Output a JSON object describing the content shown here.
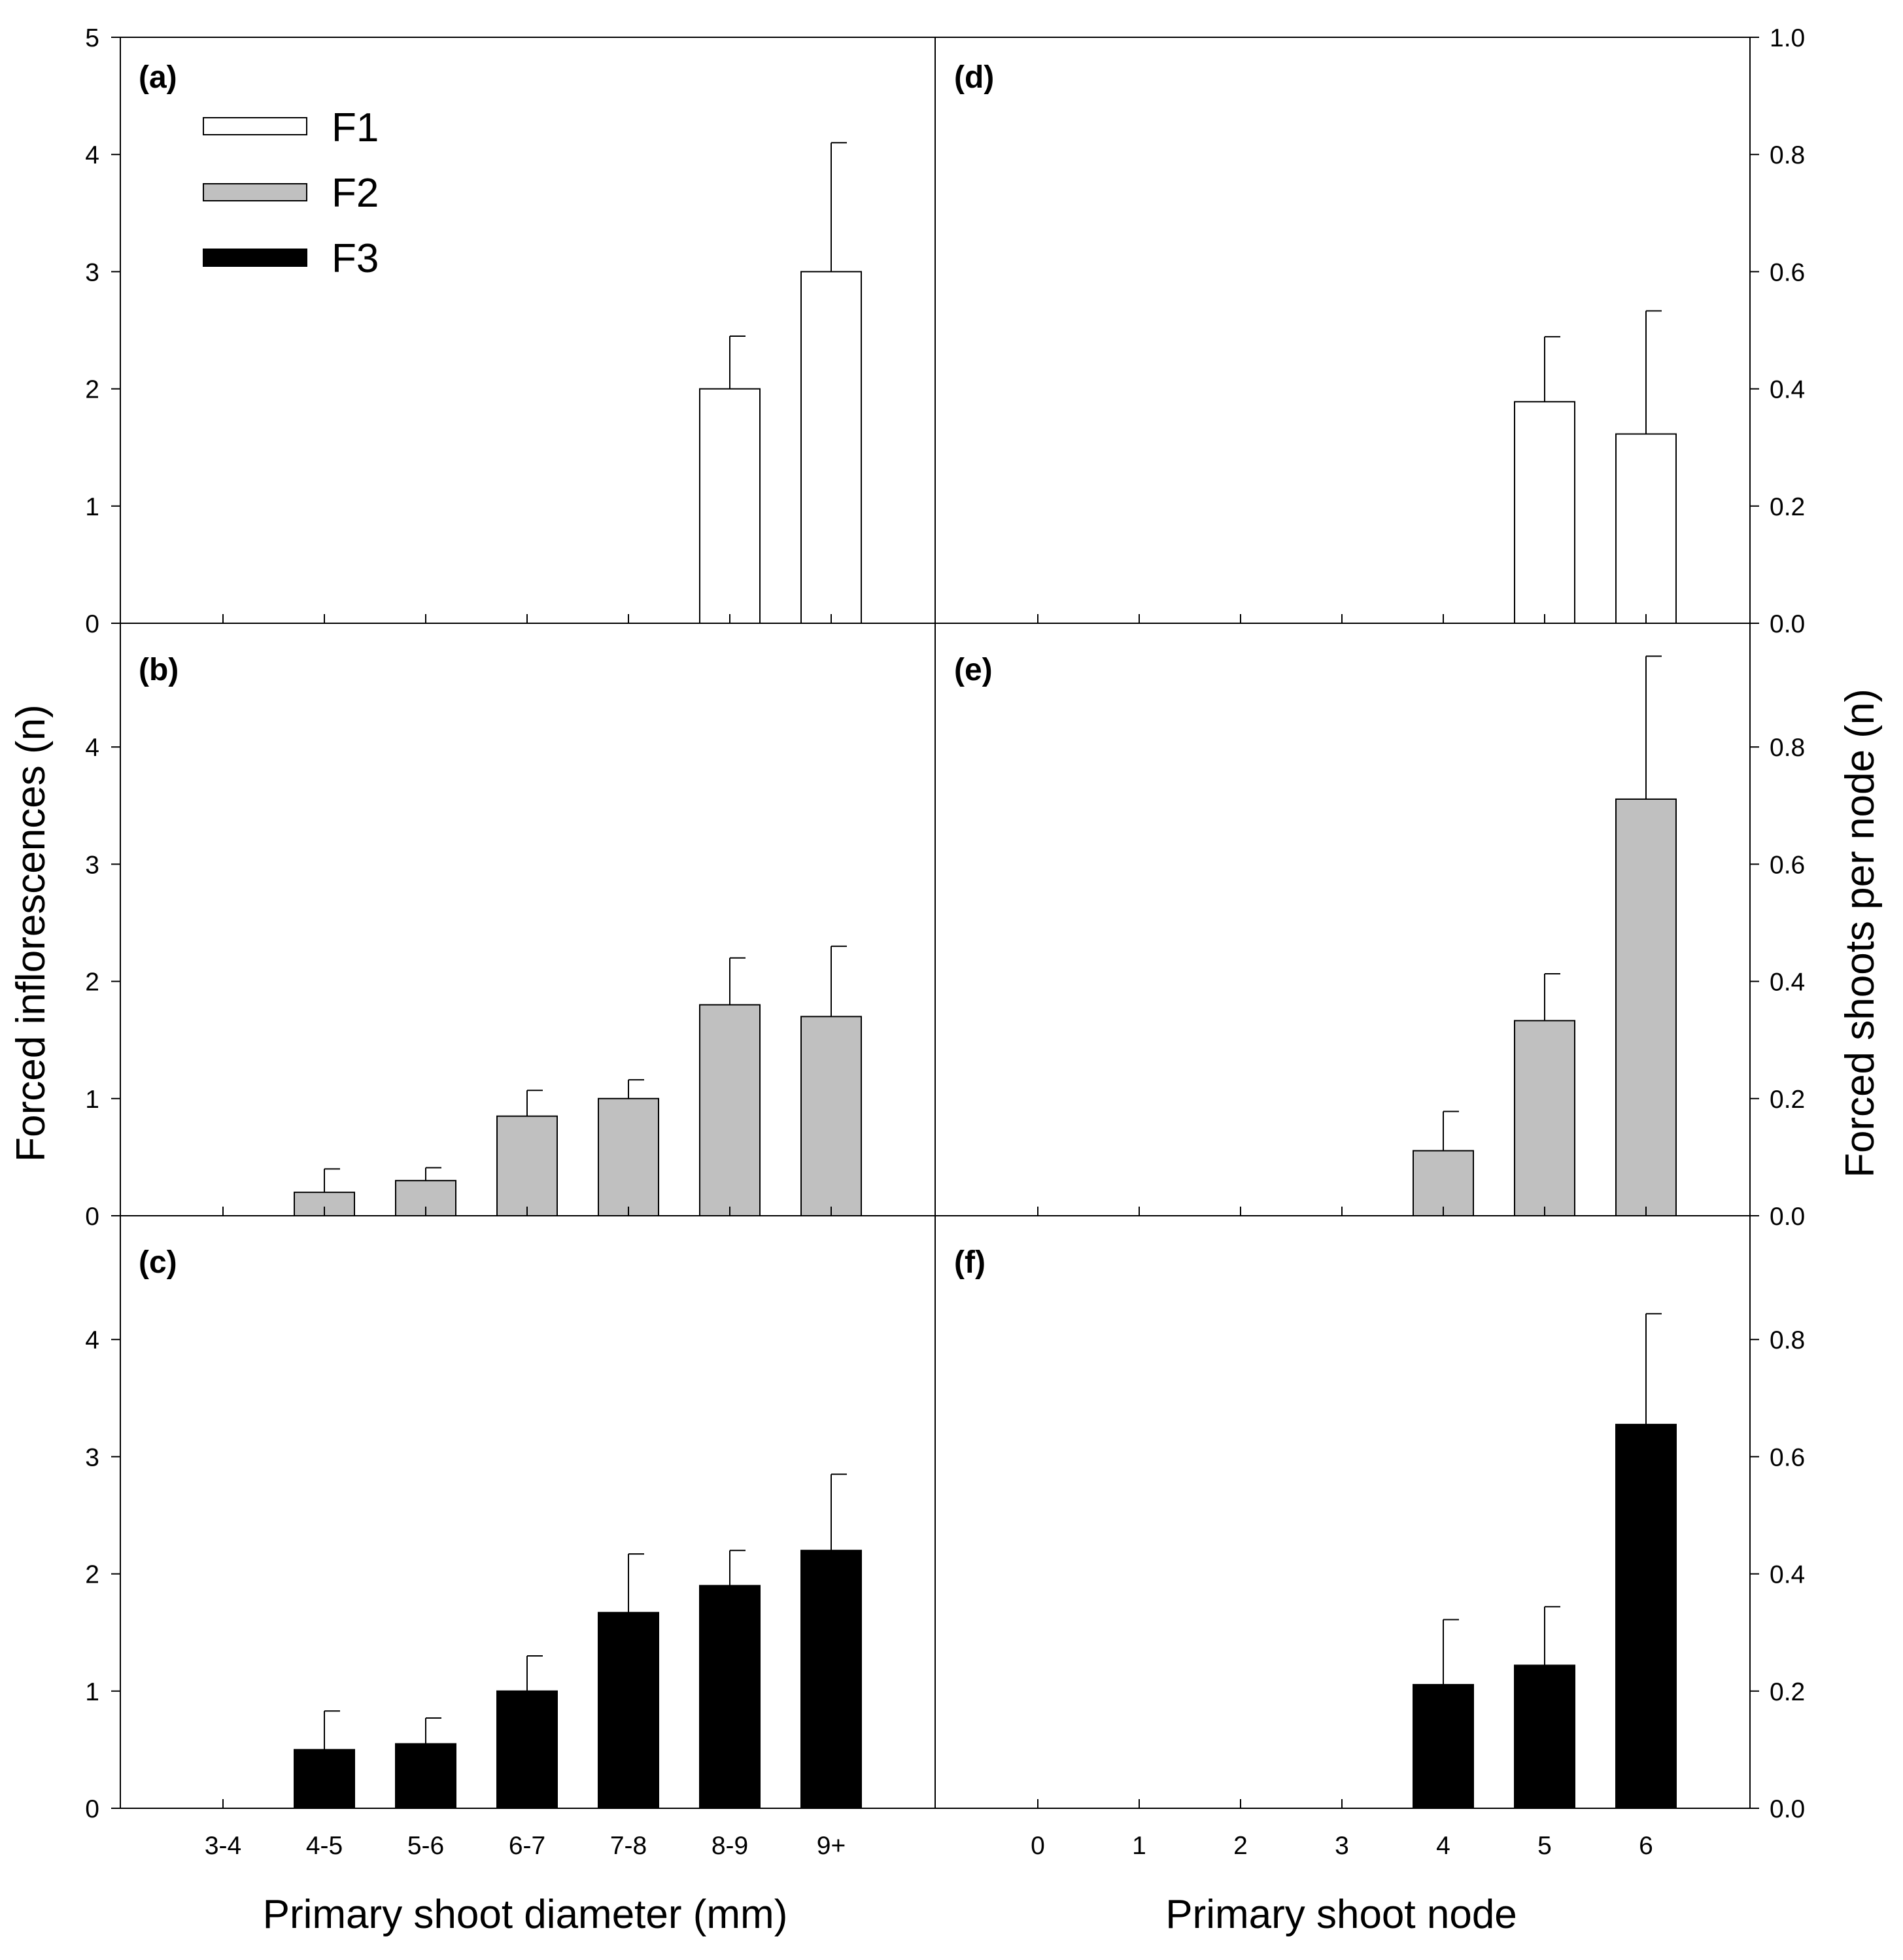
{
  "colors": {
    "F1": "#ffffff",
    "F2": "#c0c0c0",
    "F3": "#000000",
    "stroke": "#000000"
  },
  "legend": [
    {
      "label": "F1",
      "series": "F1"
    },
    {
      "label": "F2",
      "series": "F2"
    },
    {
      "label": "F3",
      "series": "F3"
    }
  ],
  "left_axis_title": "Forced inflorescences (n)",
  "right_axis_title": "Forced shoots per node (n)",
  "left_xlabel": "Primary shoot diameter (mm)",
  "right_xlabel": "Primary shoot node",
  "left_yticks_top": [
    "0",
    "1",
    "2",
    "3",
    "4",
    "5"
  ],
  "left_yticks": [
    "0",
    "1",
    "2",
    "3",
    "4"
  ],
  "right_yticks_top": [
    "0.0",
    "0.2",
    "0.4",
    "0.6",
    "0.8",
    "1.0"
  ],
  "right_yticks": [
    "0.0",
    "0.2",
    "0.4",
    "0.6",
    "0.8"
  ],
  "chart_data": [
    {
      "type": "bar",
      "panel": "(a)",
      "series": "F1",
      "categories": [
        "3-4",
        "4-5",
        "5-6",
        "6-7",
        "7-8",
        "8-9",
        "9+"
      ],
      "values": [
        0,
        0,
        0,
        0,
        0,
        2.0,
        3.0
      ],
      "errors": [
        0,
        0,
        0,
        0,
        0,
        0.45,
        1.1
      ],
      "ylabel": "Forced inflorescences (n)",
      "ylim": [
        0,
        5
      ]
    },
    {
      "type": "bar",
      "panel": "(b)",
      "series": "F2",
      "categories": [
        "3-4",
        "4-5",
        "5-6",
        "6-7",
        "7-8",
        "8-9",
        "9+"
      ],
      "values": [
        0,
        0.2,
        0.3,
        0.85,
        1.0,
        1.8,
        1.7
      ],
      "errors": [
        0,
        0.2,
        0.11,
        0.22,
        0.16,
        0.4,
        0.6
      ],
      "ylabel": "Forced inflorescences (n)",
      "ylim": [
        0,
        5
      ]
    },
    {
      "type": "bar",
      "panel": "(c)",
      "series": "F3",
      "categories": [
        "3-4",
        "4-5",
        "5-6",
        "6-7",
        "7-8",
        "8-9",
        "9+"
      ],
      "values": [
        0,
        0.5,
        0.55,
        1.0,
        1.67,
        1.9,
        2.2
      ],
      "errors": [
        0,
        0.33,
        0.22,
        0.3,
        0.5,
        0.3,
        0.65
      ],
      "xlabel": "Primary shoot diameter (mm)",
      "ylabel": "Forced inflorescences (n)",
      "ylim": [
        0,
        5
      ]
    },
    {
      "type": "bar",
      "panel": "(d)",
      "series": "F1",
      "categories": [
        "0",
        "1",
        "2",
        "3",
        "4",
        "5",
        "6"
      ],
      "values": [
        0,
        0,
        0,
        0,
        0,
        0.378,
        0.323
      ],
      "errors": [
        0,
        0,
        0,
        0,
        0,
        0.111,
        0.21
      ],
      "ylabel": "Forced shoots per node (n)",
      "ylim": [
        0,
        1.0
      ]
    },
    {
      "type": "bar",
      "panel": "(e)",
      "series": "F2",
      "categories": [
        "0",
        "1",
        "2",
        "3",
        "4",
        "5",
        "6"
      ],
      "values": [
        0,
        0,
        0,
        0,
        0.111,
        0.333,
        0.711
      ],
      "errors": [
        0,
        0,
        0,
        0,
        0.067,
        0.08,
        0.244
      ],
      "ylabel": "Forced shoots per node (n)",
      "ylim": [
        0,
        1.0
      ]
    },
    {
      "type": "bar",
      "panel": "(f)",
      "series": "F3",
      "categories": [
        "0",
        "1",
        "2",
        "3",
        "4",
        "5",
        "6"
      ],
      "values": [
        0,
        0,
        0,
        0,
        0.211,
        0.244,
        0.655
      ],
      "errors": [
        0,
        0,
        0,
        0,
        0.111,
        0.1,
        0.189
      ],
      "xlabel": "Primary shoot node",
      "ylabel": "Forced shoots per node (n)",
      "ylim": [
        0,
        1.0
      ]
    }
  ]
}
